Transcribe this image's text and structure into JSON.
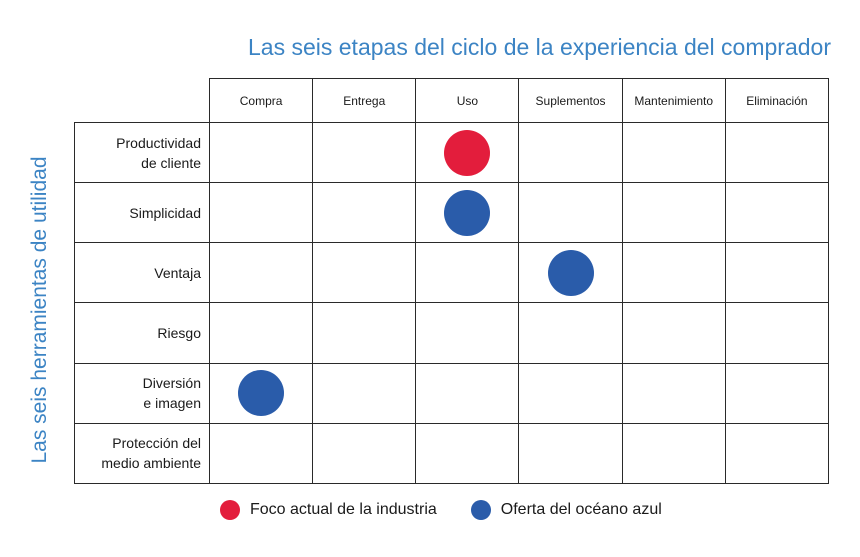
{
  "title": "Las seis etapas del ciclo de la experiencia del comprador",
  "y_title": "Las seis herramientas de utilidad",
  "columns": [
    "Compra",
    "Entrega",
    "Uso",
    "Suplementos",
    "Mantenimiento",
    "Eliminación"
  ],
  "rows": [
    {
      "line1": "Productividad",
      "line2": "de cliente"
    },
    {
      "line1": "Simplicidad",
      "line2": ""
    },
    {
      "line1": "Ventaja",
      "line2": ""
    },
    {
      "line1": "Riesgo",
      "line2": ""
    },
    {
      "line1": "Diversión",
      "line2": "e imagen"
    },
    {
      "line1": "Protección del",
      "line2": "medio ambiente"
    }
  ],
  "colors": {
    "industry_focus": "#e31d3c",
    "blue_ocean": "#2a5caa",
    "title": "#3c84c4"
  },
  "markers": [
    {
      "row": 0,
      "col": 2,
      "type": "industry_focus"
    },
    {
      "row": 1,
      "col": 2,
      "type": "blue_ocean"
    },
    {
      "row": 2,
      "col": 3,
      "type": "blue_ocean"
    },
    {
      "row": 4,
      "col": 0,
      "type": "blue_ocean"
    }
  ],
  "legend": {
    "industry_focus": "Foco actual de la industria",
    "blue_ocean": "Oferta del océano azul"
  }
}
